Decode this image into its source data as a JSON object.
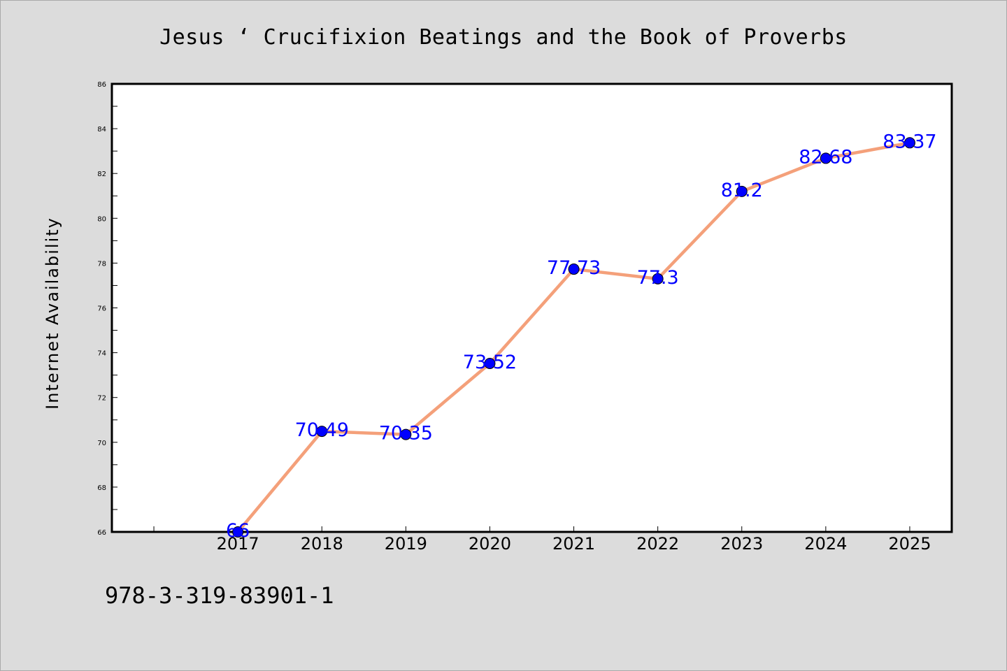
{
  "chart_data": {
    "type": "line",
    "title": "Jesus ‘ Crucifixion Beatings and the Book of Proverbs",
    "xlabel": "",
    "ylabel": "Internet Availability",
    "categories": [
      "2017",
      "2018",
      "2019",
      "2020",
      "2021",
      "2022",
      "2023",
      "2024",
      "2025"
    ],
    "series": [
      {
        "values": [
          66,
          70.49,
          70.35,
          73.52,
          77.73,
          77.3,
          81.2,
          82.68,
          83.37
        ],
        "labels": [
          "66",
          "70.49",
          "70.35",
          "73.52",
          "77.73",
          "77.3",
          "81.2",
          "82.68",
          "83.37"
        ]
      }
    ],
    "ylim": [
      66,
      86
    ],
    "yticks": [
      "66",
      "68",
      "70",
      "72",
      "74",
      "76",
      "78",
      "80",
      "82",
      "84",
      "86"
    ],
    "grid": false,
    "legend": "none",
    "colors": {
      "line": "#f4a07a",
      "marker": "#0000ff",
      "data_label": "#0000ff",
      "background": "#dcdcdc",
      "plot_area": "#ffffff"
    }
  },
  "footer": {
    "isbn": "978-3-319-83901-1"
  }
}
